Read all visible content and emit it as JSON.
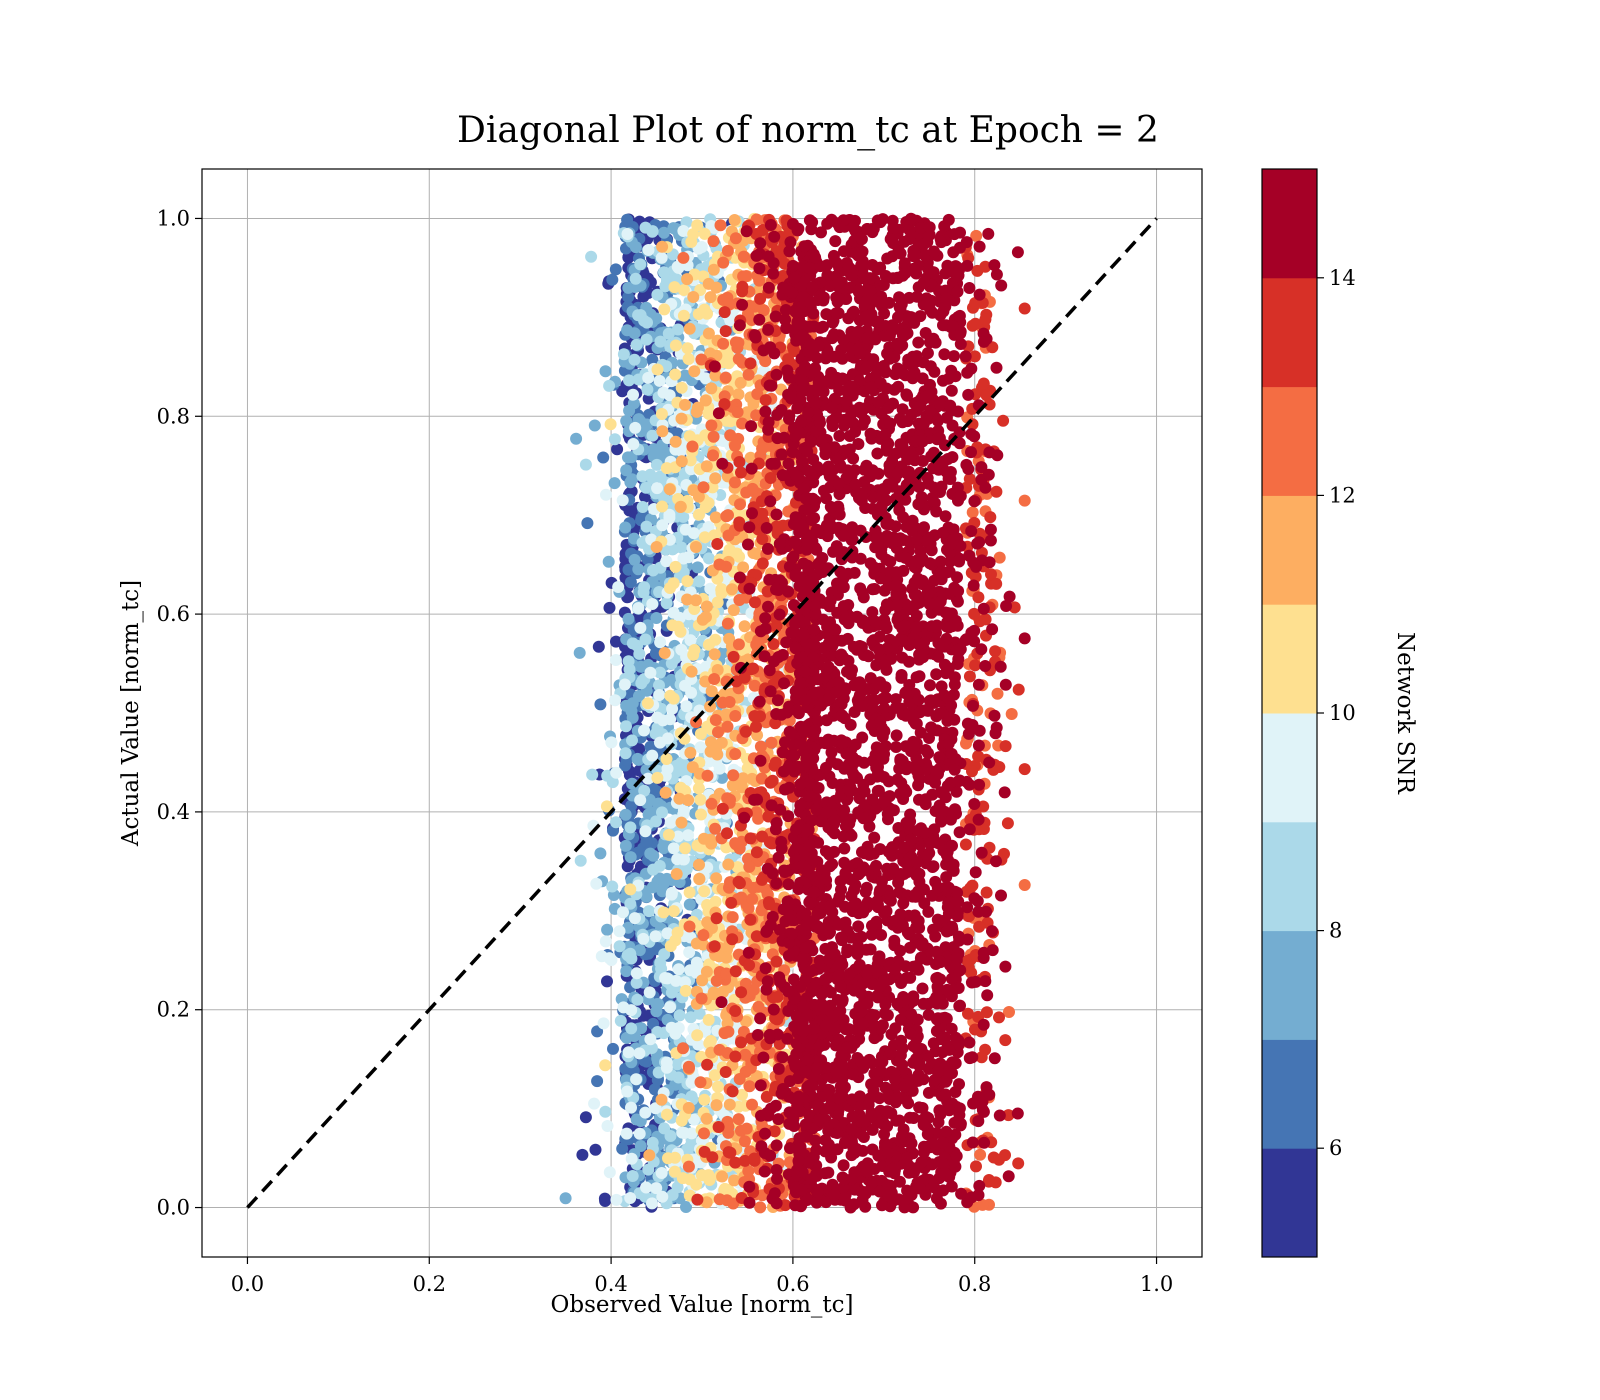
{
  "chart_data": {
    "type": "scatter",
    "title": "Diagonal Plot of norm_tc at Epoch = 2",
    "xlabel": "Observed Value [norm_tc]",
    "ylabel": "Actual Value [norm_tc]",
    "xlim": [
      -0.05,
      1.05
    ],
    "ylim": [
      -0.05,
      1.05
    ],
    "xticks": [
      "0.0",
      "0.2",
      "0.4",
      "0.6",
      "0.8",
      "1.0"
    ],
    "yticks": [
      "0.0",
      "0.2",
      "0.4",
      "0.6",
      "0.8",
      "1.0"
    ],
    "grid": true,
    "diagonal_line": {
      "x": [
        0.0,
        1.0
      ],
      "y": [
        0.0,
        1.0
      ],
      "style": "dashed",
      "color": "#000000"
    },
    "point_cloud": {
      "x_range": [
        0.35,
        0.855
      ],
      "y_range": [
        0.0,
        1.0
      ],
      "dense_core_x_range": [
        0.6,
        0.8
      ],
      "color_trend": "low SNR on left edge (x≈0.37–0.47), rising to maximum SNR for x ≥ 0.6"
    },
    "colorbar": {
      "label": "Network SNR",
      "range": [
        5,
        15
      ],
      "ticks": [
        "6",
        "8",
        "10",
        "12",
        "14"
      ],
      "levels": [
        "#313695",
        "#4575b4",
        "#74add1",
        "#abd9e9",
        "#e0f3f8",
        "#fee090",
        "#fdae61",
        "#f46d43",
        "#d73027",
        "#a50026"
      ],
      "colormap": "RdYlBu_r"
    }
  }
}
